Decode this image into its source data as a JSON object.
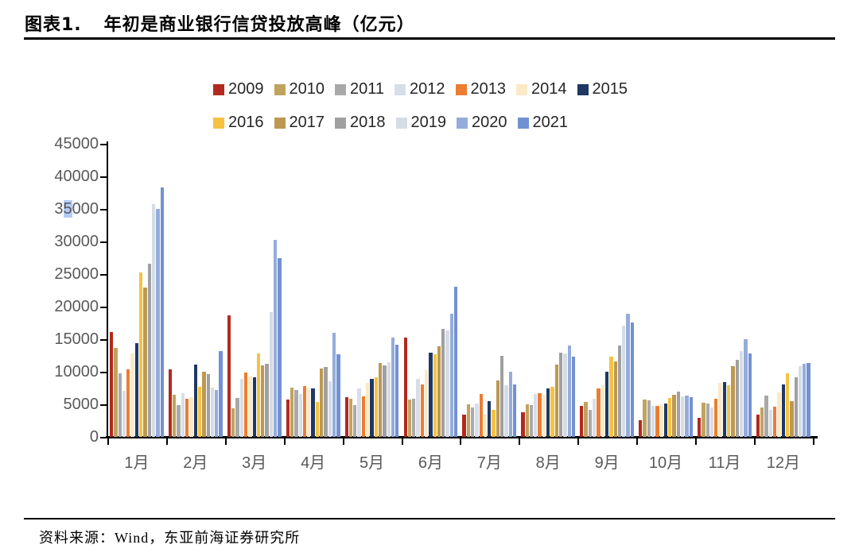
{
  "title": {
    "prefix": "图表1.",
    "text": "年初是商业银行信贷投放高峰（亿元）"
  },
  "source": {
    "text": "资料来源：Wind，东亚前海证券研究所"
  },
  "chart_data": {
    "type": "bar",
    "unit": "亿元",
    "title": "年初是商业银行信贷投放高峰（亿元）",
    "xlabel": "",
    "ylabel": "",
    "ylim": [
      0,
      45000
    ],
    "y_tick_step": 5000,
    "grid": false,
    "legend_position": "top",
    "y_ticks": [
      "45000",
      "40000",
      "35000",
      "30000",
      "25000",
      "20000",
      "15000",
      "10000",
      "5000",
      "0"
    ],
    "y_highlight": {
      "label": "35000",
      "char_index": 1,
      "color": "#b3cdf4"
    },
    "categories": [
      "1月",
      "2月",
      "3月",
      "4月",
      "5月",
      "6月",
      "7月",
      "8月",
      "9月",
      "10月",
      "11月",
      "12月"
    ],
    "legend_rows": [
      [
        "2009",
        "2010",
        "2011",
        "2012",
        "2013",
        "2014",
        "2015"
      ],
      [
        "2016",
        "2017",
        "2018",
        "2019",
        "2020",
        "2021"
      ]
    ],
    "series": [
      {
        "name": "2009",
        "color": "#b2291f",
        "values": [
          16100,
          10400,
          18600,
          5700,
          6100,
          15200,
          3400,
          3800,
          4700,
          2500,
          2900,
          3400
        ]
      },
      {
        "name": "2010",
        "color": "#c0a35e",
        "values": [
          13600,
          6500,
          4400,
          7500,
          5900,
          5700,
          5000,
          5000,
          5400,
          5700,
          5200,
          4500
        ]
      },
      {
        "name": "2011",
        "color": "#a9a9a9",
        "values": [
          9800,
          4900,
          6000,
          7200,
          4900,
          5900,
          4500,
          4900,
          4100,
          5600,
          5100,
          6300
        ]
      },
      {
        "name": "2012",
        "color": "#d8dee8",
        "values": [
          7100,
          6700,
          8900,
          6600,
          7400,
          8900,
          5100,
          6600,
          5800,
          4700,
          4500,
          4200
        ]
      },
      {
        "name": "2013",
        "color": "#ed7d31",
        "values": [
          10400,
          5800,
          9900,
          7800,
          6200,
          8100,
          6600,
          6700,
          7400,
          4800,
          5800,
          4600
        ]
      },
      {
        "name": "2014",
        "color": "#fbe9c7",
        "values": [
          12800,
          6100,
          9300,
          7400,
          8300,
          10200,
          3400,
          6500,
          7900,
          5000,
          8300,
          6800
        ]
      },
      {
        "name": "2015",
        "color": "#1f3864",
        "values": [
          14400,
          11100,
          9200,
          7400,
          8900,
          12900,
          5500,
          7400,
          10000,
          5100,
          8400,
          8100
        ]
      },
      {
        "name": "2016",
        "color": "#f5c242",
        "values": [
          25300,
          7700,
          12800,
          5400,
          9100,
          12700,
          4100,
          7700,
          12300,
          6000,
          7900,
          9800
        ]
      },
      {
        "name": "2017",
        "color": "#bd9852",
        "values": [
          22900,
          10000,
          11000,
          10500,
          11400,
          13900,
          8600,
          11100,
          11600,
          6500,
          10800,
          5500
        ]
      },
      {
        "name": "2018",
        "color": "#a0a0a0",
        "values": [
          26600,
          9600,
          11200,
          10700,
          11000,
          16600,
          12400,
          12900,
          14000,
          6900,
          11800,
          9100
        ]
      },
      {
        "name": "2019",
        "color": "#d6dce5",
        "values": [
          35700,
          7600,
          19200,
          8500,
          11500,
          16300,
          7900,
          12800,
          17100,
          6200,
          13200,
          10800
        ]
      },
      {
        "name": "2020",
        "color": "#95acdb",
        "values": [
          35000,
          7200,
          30300,
          16000,
          15300,
          18900,
          10000,
          14000,
          18900,
          6400,
          15000,
          11200
        ]
      },
      {
        "name": "2021",
        "color": "#7291d2",
        "values": [
          38300,
          13200,
          27400,
          12700,
          14100,
          23000,
          8100,
          12300,
          17500,
          6100,
          12800,
          11400
        ]
      }
    ]
  }
}
